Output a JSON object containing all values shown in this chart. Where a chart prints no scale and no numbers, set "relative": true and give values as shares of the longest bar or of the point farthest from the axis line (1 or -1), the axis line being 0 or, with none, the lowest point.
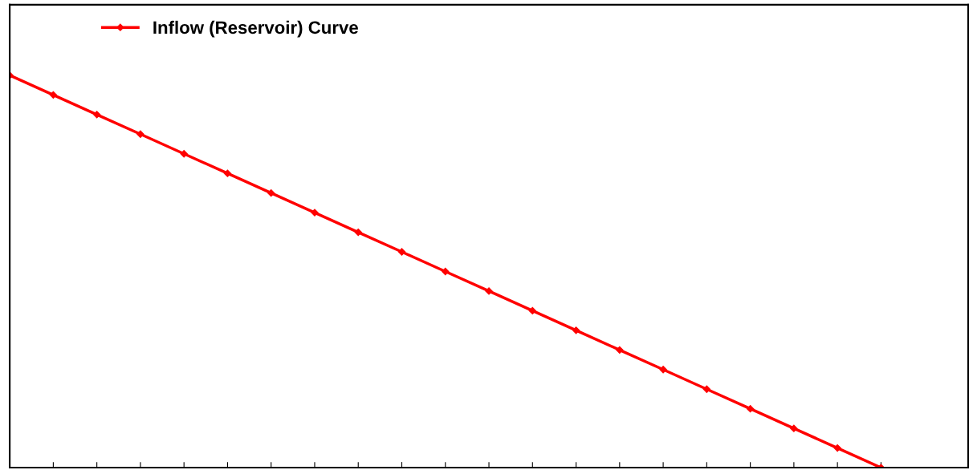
{
  "chart_data": {
    "type": "line",
    "relative": true,
    "categories": [
      null,
      null,
      null,
      null,
      null,
      null,
      null,
      null,
      null,
      null,
      null,
      null,
      null,
      null,
      null,
      null,
      null,
      null,
      null,
      null,
      null
    ],
    "series": [
      {
        "name": "Inflow (Reservoir) Curve",
        "color": "#ff0000",
        "values": [
          1,
          0.95,
          0.9,
          0.85,
          0.8,
          0.75,
          0.7,
          0.65,
          0.6,
          0.55,
          0.5,
          0.45,
          0.4,
          0.35,
          0.3,
          0.25,
          0.2,
          0.15,
          0.1,
          0.05,
          0
        ]
      }
    ],
    "marker": "diamond",
    "line_style": "solid",
    "legend": "top left",
    "grid": false
  }
}
